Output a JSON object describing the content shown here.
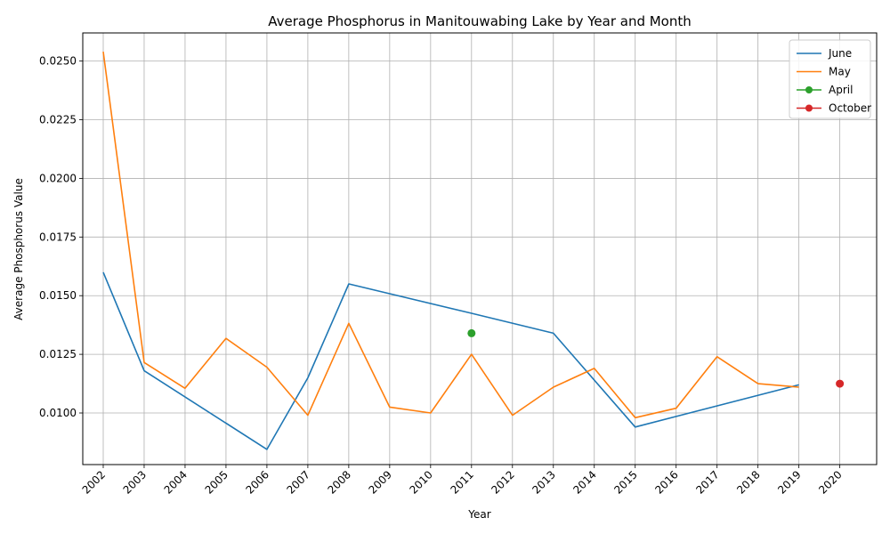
{
  "chart_data": {
    "type": "line",
    "title": "Average Phosphorus in Manitouwabing Lake by Year and Month",
    "xlabel": "Year",
    "ylabel": "Average Phosphorus Value",
    "ylim": [
      0.0078,
      0.0262
    ],
    "xlim": [
      2001.5,
      2020.9
    ],
    "yticks": [
      0.01,
      0.0125,
      0.015,
      0.0175,
      0.02,
      0.0225,
      0.025
    ],
    "ytick_labels": [
      "0.0100",
      "0.0125",
      "0.0150",
      "0.0175",
      "0.0200",
      "0.0225",
      "0.0250"
    ],
    "xticks": [
      2002,
      2003,
      2004,
      2005,
      2006,
      2007,
      2008,
      2009,
      2010,
      2011,
      2012,
      2013,
      2014,
      2015,
      2016,
      2017,
      2018,
      2019,
      2020
    ],
    "xtick_labels": [
      "2002",
      "2003",
      "2004",
      "2005",
      "2006",
      "2007",
      "2008",
      "2009",
      "2010",
      "2011",
      "2012",
      "2013",
      "2014",
      "2015",
      "2016",
      "2017",
      "2018",
      "2019",
      "2020"
    ],
    "grid": true,
    "legend_position": "top-right",
    "series": [
      {
        "name": "June",
        "color": "#1f77b4",
        "marker": false,
        "x": [
          2002,
          2003,
          2006,
          2007,
          2008,
          2011,
          2013,
          2015,
          2019
        ],
        "y": [
          0.016,
          0.0118,
          0.00845,
          0.0115,
          0.0155,
          0.01425,
          0.0134,
          0.0094,
          0.0112
        ]
      },
      {
        "name": "May",
        "color": "#ff7f0e",
        "marker": false,
        "x": [
          2002,
          2003,
          2004,
          2005,
          2006,
          2007,
          2008,
          2009,
          2010,
          2011,
          2012,
          2013,
          2014,
          2015,
          2016,
          2017,
          2018,
          2019
        ],
        "y": [
          0.0254,
          0.01215,
          0.01105,
          0.01318,
          0.01195,
          0.0099,
          0.01382,
          0.01025,
          0.01,
          0.0125,
          0.0099,
          0.0111,
          0.0119,
          0.0098,
          0.0102,
          0.0124,
          0.01125,
          0.0111
        ]
      },
      {
        "name": "April",
        "color": "#2ca02c",
        "marker": true,
        "x": [
          2011
        ],
        "y": [
          0.0134
        ]
      },
      {
        "name": "October",
        "color": "#d62728",
        "marker": true,
        "x": [
          2020
        ],
        "y": [
          0.01125
        ]
      }
    ]
  }
}
